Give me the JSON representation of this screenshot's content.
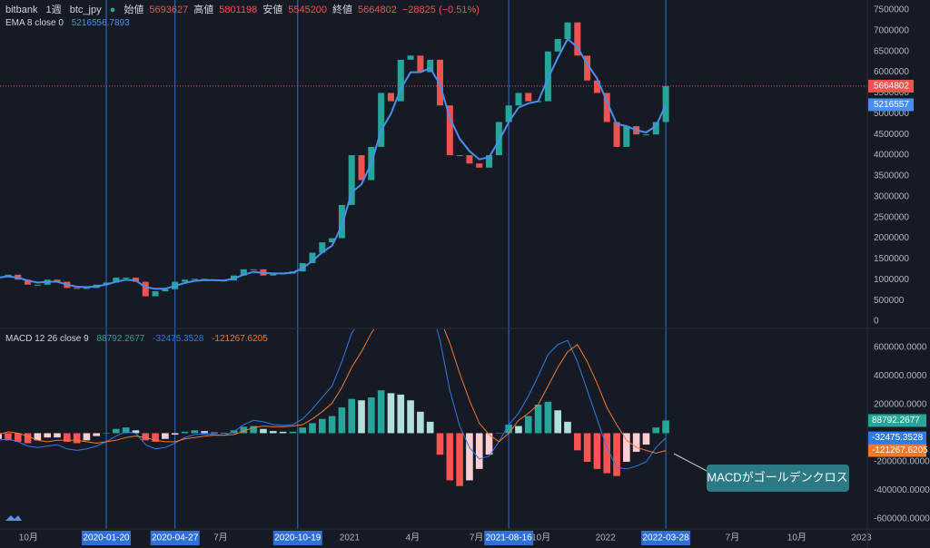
{
  "chart_data": [
    {
      "type": "candlestick",
      "exchange": "bitbank",
      "interval": "1週",
      "symbol": "btc_jpy",
      "ohlc_labels": [
        "始値",
        "高値",
        "安値",
        "終値"
      ],
      "ohlc_values": [
        5693627,
        5801198,
        5545200,
        5664802
      ],
      "change": {
        "value": -28825,
        "label": "−28825 (−0.51%)"
      },
      "x": [
        "2019-08-19",
        "2019-09-02",
        "2019-09-16",
        "2019-09-30",
        "2019-10-14",
        "2019-10-28",
        "2019-11-11",
        "2019-11-25",
        "2019-12-09",
        "2019-12-23",
        "2020-01-06",
        "2020-01-20",
        "2020-02-03",
        "2020-02-17",
        "2020-03-02",
        "2020-03-16",
        "2020-03-30",
        "2020-04-13",
        "2020-04-27",
        "2020-05-11",
        "2020-05-25",
        "2020-06-08",
        "2020-06-22",
        "2020-07-06",
        "2020-07-20",
        "2020-08-03",
        "2020-08-17",
        "2020-08-31",
        "2020-09-14",
        "2020-09-28",
        "2020-10-12",
        "2020-10-26",
        "2020-11-09",
        "2020-11-23",
        "2020-12-07",
        "2020-12-21",
        "2021-01-04",
        "2021-01-18",
        "2021-02-01",
        "2021-02-15",
        "2021-03-01",
        "2021-03-15",
        "2021-03-29",
        "2021-04-12",
        "2021-04-26",
        "2021-05-10",
        "2021-05-24",
        "2021-06-07",
        "2021-06-21",
        "2021-07-05",
        "2021-07-19",
        "2021-08-02",
        "2021-08-16",
        "2021-08-30",
        "2021-09-13",
        "2021-09-27",
        "2021-10-11",
        "2021-10-25",
        "2021-11-08",
        "2021-11-22",
        "2021-12-06",
        "2021-12-20",
        "2022-01-03",
        "2022-01-17",
        "2022-01-31",
        "2022-02-14",
        "2022-02-28",
        "2022-03-14",
        "2022-03-28"
      ],
      "close": [
        1080000,
        1120000,
        1000000,
        880000,
        880000,
        1000000,
        950000,
        800000,
        780000,
        800000,
        880000,
        930000,
        1050000,
        1050000,
        950000,
        600000,
        720000,
        770000,
        950000,
        1000000,
        1020000,
        1000000,
        980000,
        980000,
        1100000,
        1250000,
        1250000,
        1100000,
        1150000,
        1150000,
        1200000,
        1400000,
        1650000,
        1900000,
        2000000,
        2800000,
        4000000,
        3400000,
        4200000,
        5500000,
        5300000,
        6300000,
        6400000,
        6000000,
        6300000,
        5200000,
        4000000,
        4000000,
        3800000,
        3700000,
        4000000,
        4800000,
        5200000,
        5500000,
        5300000,
        5300000,
        6500000,
        6800000,
        7200000,
        6400000,
        5800000,
        5500000,
        4800000,
        4200000,
        4700000,
        4500000,
        4500000,
        4800000,
        5664802
      ],
      "up_color": "#26a69a",
      "down_color": "#ef5350",
      "ema": {
        "name": "EMA 8 close 0",
        "color": "#4a8ff0",
        "axis_label": "5216557",
        "values": [
          1050000,
          1080000,
          1050000,
          980000,
          930000,
          950000,
          950000,
          880000,
          830000,
          820000,
          840000,
          880000,
          950000,
          1000000,
          980000,
          820000,
          780000,
          780000,
          850000,
          920000,
          970000,
          990000,
          990000,
          980000,
          1030000,
          1120000,
          1190000,
          1160000,
          1150000,
          1150000,
          1170000,
          1280000,
          1450000,
          1660000,
          1820000,
          2300000,
          3100000,
          3300000,
          3800000,
          4600000,
          5000000,
          5600000,
          6000000,
          6000000,
          6100000,
          5700000,
          4900000,
          4400000,
          4100000,
          3900000,
          3950000,
          4350000,
          4800000,
          5150000,
          5250000,
          5300000,
          5850000,
          6350000,
          6800000,
          6600000,
          6200000,
          5850000,
          5300000,
          4750000,
          4700000,
          4600000,
          4550000,
          4700000,
          5216556.7893
        ]
      },
      "ylim": [
        -175000,
        7740000
      ],
      "yticks": [
        0,
        500000,
        1000000,
        1500000,
        2000000,
        2500000,
        3000000,
        3500000,
        4000000,
        4500000,
        5000000,
        5500000,
        6000000,
        6500000,
        7000000,
        7500000
      ],
      "xticks": [
        {
          "value": "2019-10",
          "label": "10月"
        },
        {
          "value": "2020-07",
          "label": "7月"
        },
        {
          "value": "2021-01",
          "label": "2021"
        },
        {
          "value": "2021-04",
          "label": "4月"
        },
        {
          "value": "2021-07",
          "label": "7月"
        },
        {
          "value": "2021-10",
          "label": "10月"
        },
        {
          "value": "2022-01",
          "label": "2022"
        },
        {
          "value": "2022-07",
          "label": "7月"
        },
        {
          "value": "2022-10",
          "label": "10月"
        },
        {
          "value": "2023-01",
          "label": "2023"
        }
      ],
      "date_markers": [
        "2020-01-20",
        "2020-04-27",
        "2020-10-19",
        "2021-08-16",
        "2022-03-28"
      ],
      "grid": false
    },
    {
      "type": "macd",
      "name": "MACD 12 26 close 9",
      "histogram": {
        "values": [
          -40000,
          -50000,
          -60000,
          -70000,
          -50000,
          -30000,
          -30000,
          -60000,
          -70000,
          -50000,
          -20000,
          0,
          30000,
          40000,
          20000,
          -50000,
          -60000,
          -40000,
          -10000,
          10000,
          20000,
          15000,
          5000,
          0,
          20000,
          45000,
          50000,
          30000,
          15000,
          10000,
          10000,
          40000,
          70000,
          100000,
          120000,
          180000,
          240000,
          230000,
          250000,
          300000,
          280000,
          270000,
          230000,
          150000,
          80000,
          -150000,
          -330000,
          -370000,
          -330000,
          -250000,
          -150000,
          0,
          60000,
          50000,
          120000,
          200000,
          220000,
          160000,
          80000,
          -120000,
          -200000,
          -250000,
          -280000,
          -300000,
          -200000,
          -130000,
          -80000,
          40000,
          88792.2677
        ],
        "color": "#26a69a"
      },
      "macd": {
        "color": "#2f7be8",
        "values": [
          -50000,
          -40000,
          -60000,
          -90000,
          -100000,
          -90000,
          -80000,
          -110000,
          -120000,
          -110000,
          -90000,
          -60000,
          -20000,
          10000,
          0,
          -80000,
          -110000,
          -100000,
          -70000,
          -30000,
          -10000,
          -5000,
          -10000,
          -15000,
          10000,
          60000,
          90000,
          80000,
          60000,
          55000,
          60000,
          100000,
          170000,
          250000,
          330000,
          500000,
          700000,
          800000,
          950000,
          1100000,
          1150000,
          1150000,
          1100000,
          1000000,
          900000,
          650000,
          300000,
          50000,
          -100000,
          -180000,
          -160000,
          -60000,
          60000,
          140000,
          260000,
          400000,
          550000,
          620000,
          650000,
          500000,
          300000,
          100000,
          -100000,
          -240000,
          -250000,
          -230000,
          -200000,
          -100000,
          -32475.3528
        ]
      },
      "signal": {
        "color": "#f2792b",
        "values": [
          -10000,
          10000,
          0,
          -20000,
          -50000,
          -60000,
          -50000,
          -50000,
          -50000,
          -60000,
          -70000,
          -60000,
          -50000,
          -30000,
          -20000,
          -30000,
          -50000,
          -60000,
          -60000,
          -40000,
          -30000,
          -20000,
          -15000,
          -15000,
          -10000,
          15000,
          40000,
          50000,
          45000,
          45000,
          50000,
          60000,
          100000,
          150000,
          210000,
          320000,
          460000,
          570000,
          700000,
          800000,
          870000,
          880000,
          870000,
          850000,
          820000,
          800000,
          630000,
          420000,
          230000,
          70000,
          -10000,
          -60000,
          0,
          90000,
          140000,
          200000,
          330000,
          460000,
          570000,
          620000,
          500000,
          350000,
          180000,
          60000,
          -50000,
          -100000,
          -120000,
          -140000,
          -121267.6205
        ]
      },
      "ylim": [
        -670000,
        733000
      ],
      "yticks": [
        {
          "value": 600000,
          "label": "600000.0000"
        },
        {
          "value": 400000,
          "label": "400000.0000"
        },
        {
          "value": 200000,
          "label": "200000.0000"
        },
        {
          "value": -200000,
          "label": "-200000.0000"
        },
        {
          "value": -400000,
          "label": "-400000.0000"
        },
        {
          "value": -600000,
          "label": "-600000.0000"
        }
      ],
      "annotation": "MACDがゴールデンクロス"
    }
  ]
}
